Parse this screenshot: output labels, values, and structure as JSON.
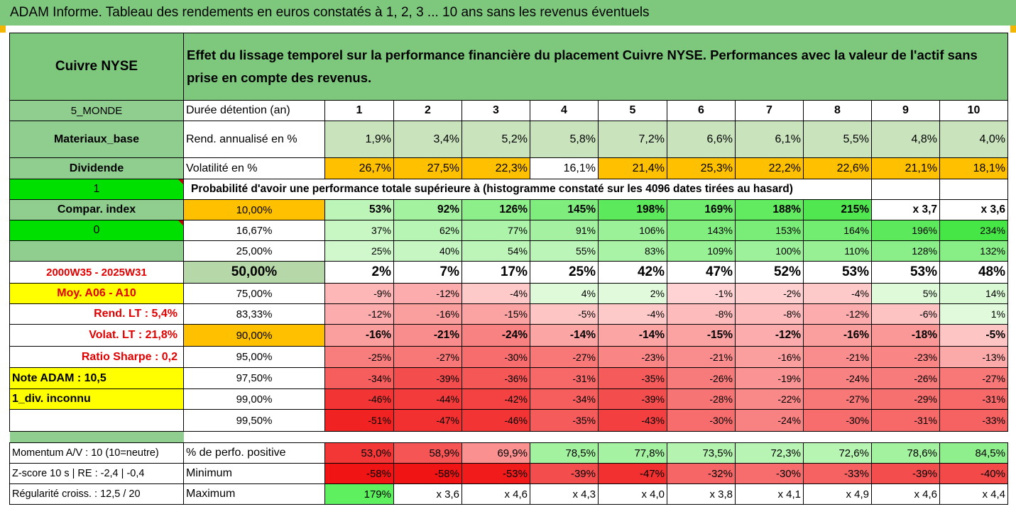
{
  "title": "ADAM Informe. Tableau des rendements en euros constatés à 1, 2, 3 ... 10 ans sans les revenus éventuels",
  "colors": {
    "header_green": "#7ec87e",
    "bright_green": "#00e000",
    "orange": "#ffc000",
    "yellow": "#ffff00",
    "label_green": "#8fce8f"
  },
  "header": {
    "asset": "Cuivre NYSE",
    "description": "Effet du lissage temporel sur la performance financière du placement Cuivre NYSE. Performances avec la valeur de l'actif sans prise en compte des revenus."
  },
  "rows": {
    "duration": {
      "side": "5_MONDE",
      "label": "Durée détention (an)",
      "values": [
        "1",
        "2",
        "3",
        "4",
        "5",
        "6",
        "7",
        "8",
        "9",
        "10"
      ]
    },
    "rend": {
      "side": "Materiaux_base",
      "label": "Rend. annualisé en %",
      "values": [
        "1,9%",
        "3,4%",
        "5,2%",
        "5,8%",
        "7,2%",
        "6,6%",
        "6,1%",
        "5,5%",
        "4,8%",
        "4,0%"
      ]
    },
    "vol": {
      "side": "Dividende",
      "label": "Volatilité en %",
      "values": [
        "26,7%",
        "27,5%",
        "22,3%",
        "16,1%",
        "21,4%",
        "25,3%",
        "22,2%",
        "22,6%",
        "21,1%",
        "18,1%"
      ]
    },
    "prob": {
      "side": "1",
      "label": "Probabilité d'avoir une performance totale supérieure à (histogramme constaté sur les 4096 dates tirées au hasard)"
    }
  },
  "probability_rows": [
    {
      "side": "Compar. index",
      "pct": "10,00%",
      "values": [
        "53%",
        "92%",
        "126%",
        "145%",
        "198%",
        "169%",
        "188%",
        "215%",
        "x 3,7",
        "x 3,6"
      ]
    },
    {
      "side": "0",
      "pct": "16,67%",
      "values": [
        "37%",
        "62%",
        "77%",
        "91%",
        "106%",
        "143%",
        "153%",
        "164%",
        "196%",
        "234%"
      ]
    },
    {
      "side": "",
      "pct": "25,00%",
      "values": [
        "25%",
        "40%",
        "54%",
        "55%",
        "83%",
        "109%",
        "100%",
        "110%",
        "128%",
        "132%"
      ]
    },
    {
      "side": "2000W35 - 2025W31",
      "pct": "50,00%",
      "values": [
        "2%",
        "7%",
        "17%",
        "25%",
        "42%",
        "47%",
        "52%",
        "53%",
        "53%",
        "48%"
      ]
    },
    {
      "side": "Moy. A06 - A10",
      "pct": "75,00%",
      "values": [
        "-9%",
        "-12%",
        "-4%",
        "4%",
        "2%",
        "-1%",
        "-2%",
        "-4%",
        "5%",
        "14%"
      ]
    },
    {
      "side": "Rend. LT :    5,4%",
      "pct": "83,33%",
      "values": [
        "-12%",
        "-16%",
        "-15%",
        "-5%",
        "-4%",
        "-8%",
        "-8%",
        "-12%",
        "-6%",
        "1%"
      ]
    },
    {
      "side": "Volat. LT :   21,8%",
      "pct": "90,00%",
      "values": [
        "-16%",
        "-21%",
        "-24%",
        "-14%",
        "-14%",
        "-15%",
        "-12%",
        "-16%",
        "-18%",
        "-5%"
      ]
    },
    {
      "side": "Ratio Sharpe :    0,2",
      "pct": "95,00%",
      "values": [
        "-25%",
        "-27%",
        "-30%",
        "-27%",
        "-23%",
        "-21%",
        "-16%",
        "-21%",
        "-23%",
        "-13%"
      ]
    },
    {
      "side": "Note ADAM : 10,5",
      "pct": "97,50%",
      "values": [
        "-34%",
        "-39%",
        "-36%",
        "-31%",
        "-35%",
        "-26%",
        "-19%",
        "-24%",
        "-26%",
        "-27%"
      ]
    },
    {
      "side": "1_div. inconnu",
      "pct": "99,00%",
      "values": [
        "-46%",
        "-44%",
        "-42%",
        "-34%",
        "-39%",
        "-28%",
        "-22%",
        "-27%",
        "-29%",
        "-31%"
      ]
    },
    {
      "side": "",
      "pct": "99,50%",
      "values": [
        "-51%",
        "-47%",
        "-46%",
        "-35%",
        "-43%",
        "-30%",
        "-24%",
        "-30%",
        "-31%",
        "-33%"
      ]
    }
  ],
  "footer_rows": [
    {
      "side": "Momentum A/V : 10 (10=neutre)",
      "label": "% de perfo. positive",
      "values": [
        "53,0%",
        "58,9%",
        "69,9%",
        "78,5%",
        "77,8%",
        "73,5%",
        "72,3%",
        "72,6%",
        "78,6%",
        "84,5%"
      ]
    },
    {
      "side": "Z-score 10 s  |  RE : -2,4  | -0,4",
      "label": "Minimum",
      "values": [
        "-58%",
        "-58%",
        "-53%",
        "-39%",
        "-47%",
        "-32%",
        "-30%",
        "-33%",
        "-39%",
        "-40%"
      ]
    },
    {
      "side": "Régularité croiss. : 12,5 / 20",
      "label": "Maximum",
      "values": [
        "179%",
        "x 3,6",
        "x 4,6",
        "x 4,3",
        "x 4,0",
        "x 3,8",
        "x 4,1",
        "x 4,9",
        "x 4,6",
        "x 4,4"
      ]
    }
  ]
}
